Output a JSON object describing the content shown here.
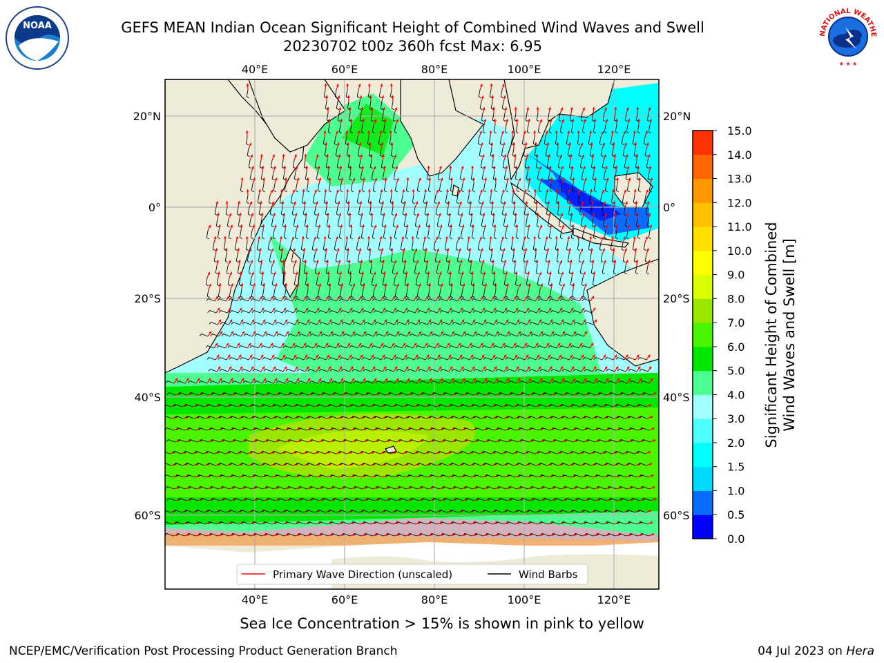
{
  "title_line1": "GEFS MEAN Indian Ocean Significant Height of Combined Wind Waves and Swell",
  "title_line2": "20230702 t00z 360h fcst   Max: 6.95",
  "logos": {
    "left": "NOAA",
    "right": "NATIONAL WEATHER SERVICE"
  },
  "map": {
    "lon_labels": [
      "40°E",
      "60°E",
      "80°E",
      "100°E",
      "120°E"
    ],
    "lat_labels_left": [
      "20°N",
      "0°",
      "20°S",
      "40°S",
      "60°S"
    ],
    "lat_labels_right": [
      "20°N",
      "0°",
      "20°S",
      "40°S",
      "60°S"
    ]
  },
  "legend": {
    "wave_dir": "Primary Wave Direction (unscaled)",
    "wind_barbs": "Wind Barbs"
  },
  "colorbar": {
    "label_line1": "Significant Height of Combined",
    "label_line2": "Wind Waves and Swell [m]",
    "ticks": [
      "0.0",
      "0.5",
      "1.0",
      "1.5",
      "2.0",
      "3.0",
      "4.0",
      "5.0",
      "6.0",
      "7.0",
      "8.0",
      "9.0",
      "10.0",
      "11.0",
      "12.0",
      "13.0",
      "14.0",
      "15.0"
    ],
    "colors": [
      "#0000ff",
      "#0a6cff",
      "#00d9ff",
      "#00ffff",
      "#4dffff",
      "#a3ffff",
      "#4dff90",
      "#00e600",
      "#4af500",
      "#99e600",
      "#d9ff00",
      "#ffff00",
      "#ffe000",
      "#ffc000",
      "#ff9900",
      "#ff6600",
      "#ff3300",
      "#ff0000"
    ]
  },
  "caption": "Sea Ice Concentration > 15% is shown in pink to yellow",
  "footer_left": "NCEP/EMC/Verification Post Processing Product Generation Branch",
  "footer_date": "04 Jul 2023 on ",
  "footer_host": "Hera"
}
